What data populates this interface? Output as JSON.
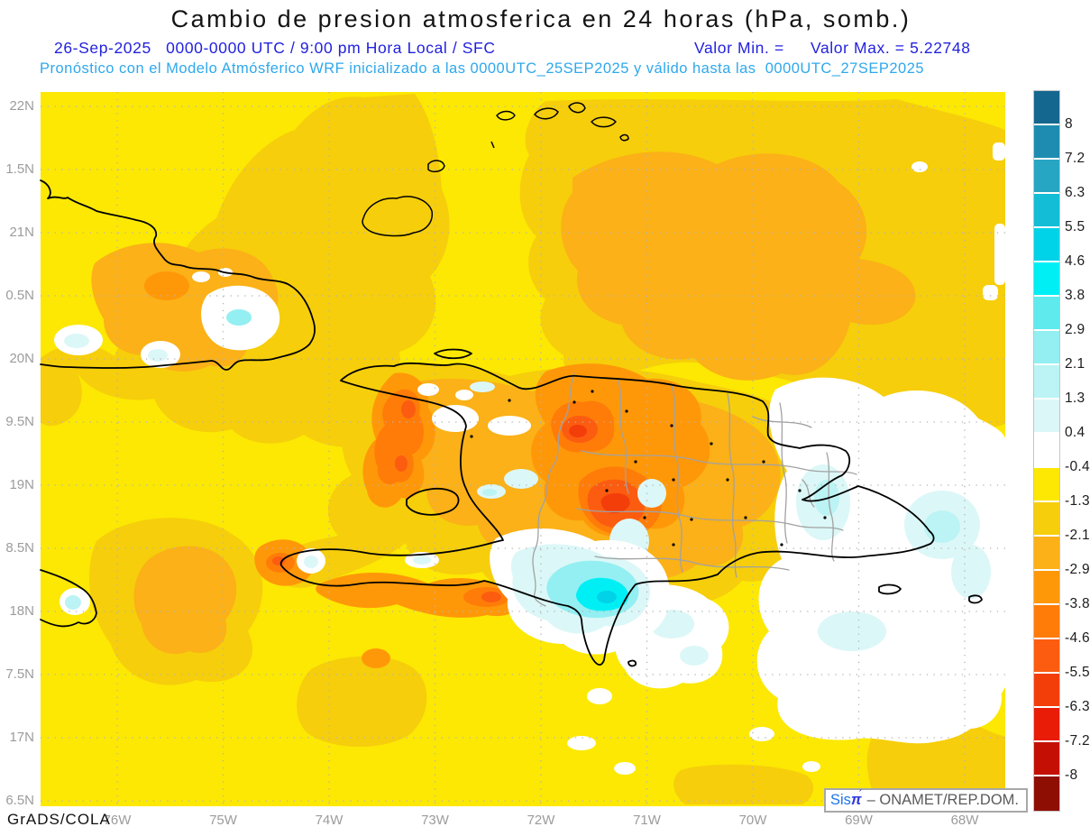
{
  "header": {
    "title": "Cambio de presion atmosferica en 24 horas (hPa, somb.)",
    "run_line": "26-Sep-2025   0000-0000 UTC / 9:00 pm Hora Local / SFC",
    "valor_min": "Valor Min. =",
    "valor_max": "Valor Max. = 5.22748",
    "model_line": "Pronóstico con el Modelo Atmósferico WRF inicializado a las 0000UTC_25SEP2025 y válido hasta las  0000UTC_27SEP2025"
  },
  "axes": {
    "y_labels": [
      "22N",
      "1.5N",
      "21N",
      "0.5N",
      "20N",
      "9.5N",
      "19N",
      "8.5N",
      "18N",
      "7.5N",
      "17N",
      "6.5N"
    ],
    "x_labels": [
      "76W",
      "75W",
      "74W",
      "73W",
      "72W",
      "71W",
      "70W",
      "69W",
      "68W"
    ]
  },
  "colorbar": {
    "units": "hPa",
    "boundary_labels": [
      "8",
      "7.2",
      "6.3",
      "5.5",
      "4.6",
      "3.8",
      "2.9",
      "2.1",
      "1.3",
      "0.4",
      "-0.4",
      "-1.3",
      "-2.1",
      "-2.9",
      "-3.8",
      "-4.6",
      "-5.5",
      "-6.3",
      "-7.2",
      "-8"
    ],
    "segment_colors": [
      "#14678F",
      "#1E8CB0",
      "#27A6C4",
      "#13BDD6",
      "#00D2E8",
      "#00EFF5",
      "#5FEAEE",
      "#93EFF2",
      "#BCF3F4",
      "#DCF7F7",
      "#FFFFFF",
      "#FCE803",
      "#F6CE0B",
      "#FBB117",
      "#FF9808",
      "#FF7C09",
      "#FC5C10",
      "#F33E0A",
      "#E91C08",
      "#C41004",
      "#8F0E04"
    ]
  },
  "footer": {
    "credit": "GrADS/COLA"
  },
  "brand": {
    "sis": "Sis",
    "pi": "π",
    "accent": "´",
    "org": "– ONAMET/REP.DOM."
  },
  "colors": {
    "run_line_blue": "#2322DE",
    "model_line_cyan": "#2FA8EC",
    "axis_gray": "#9C9C9C",
    "grid_gray": "#B4B4B4",
    "coastline_black": "#000000",
    "province_gray": "#A2A2A2"
  }
}
